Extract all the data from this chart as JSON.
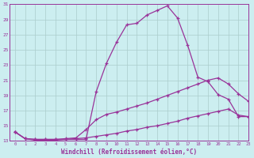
{
  "xlabel": "Windchill (Refroidissement éolien,°C)",
  "ylabel": "",
  "xlim": [
    -0.5,
    23
  ],
  "ylim": [
    13,
    31
  ],
  "yticks": [
    13,
    15,
    17,
    19,
    21,
    23,
    25,
    27,
    29,
    31
  ],
  "xticks": [
    0,
    1,
    2,
    3,
    4,
    5,
    6,
    7,
    8,
    9,
    10,
    11,
    12,
    13,
    14,
    15,
    16,
    17,
    18,
    19,
    20,
    21,
    22,
    23
  ],
  "background_color": "#cceef0",
  "line_color": "#993399",
  "grid_color": "#aacccc",
  "series": [
    {
      "x": [
        0,
        1,
        2,
        3,
        4,
        5,
        6,
        7,
        8,
        9,
        10,
        11,
        12,
        13,
        14,
        15,
        16,
        17,
        18,
        19,
        20,
        21,
        22,
        23
      ],
      "y": [
        14.2,
        13.3,
        13.1,
        13.1,
        13.1,
        13.2,
        13.2,
        13.2,
        19.5,
        23.2,
        26.0,
        28.3,
        28.5,
        29.6,
        30.2,
        30.8,
        29.2,
        25.6,
        21.4,
        20.8,
        19.1,
        18.5,
        16.2,
        16.2
      ]
    },
    {
      "x": [
        0,
        1,
        2,
        3,
        4,
        5,
        6,
        7,
        8,
        9,
        10,
        11,
        12,
        13,
        14,
        15,
        16,
        17,
        18,
        19,
        20,
        21,
        22,
        23
      ],
      "y": [
        14.2,
        13.3,
        13.2,
        13.2,
        13.2,
        13.3,
        13.4,
        14.5,
        15.8,
        16.5,
        16.8,
        17.2,
        17.6,
        18.0,
        18.5,
        19.0,
        19.5,
        20.0,
        20.5,
        21.0,
        21.3,
        20.5,
        19.2,
        18.2
      ]
    },
    {
      "x": [
        0,
        1,
        2,
        3,
        4,
        5,
        6,
        7,
        8,
        9,
        10,
        11,
        12,
        13,
        14,
        15,
        16,
        17,
        18,
        19,
        20,
        21,
        22,
        23
      ],
      "y": [
        14.2,
        13.3,
        13.2,
        13.2,
        13.2,
        13.2,
        13.3,
        13.4,
        13.6,
        13.8,
        14.0,
        14.3,
        14.5,
        14.8,
        15.0,
        15.3,
        15.6,
        16.0,
        16.3,
        16.6,
        16.9,
        17.2,
        16.4,
        16.2
      ]
    }
  ]
}
